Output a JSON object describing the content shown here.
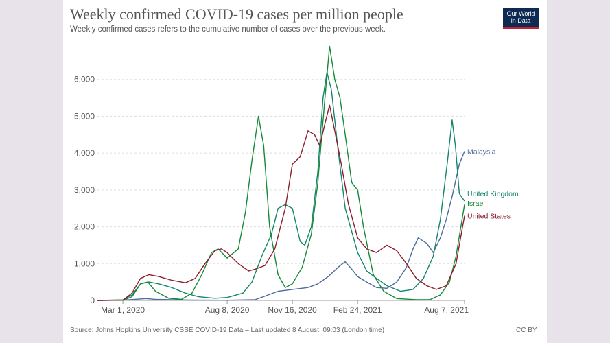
{
  "header": {
    "title": "Weekly confirmed COVID-19 cases per million people",
    "subtitle": "Weekly confirmed cases refers to the cumulative number of cases over the previous week."
  },
  "logo": {
    "line1": "Our World",
    "line2": "in Data"
  },
  "footer": {
    "source": "Source: Johns Hopkins University CSSE COVID-19 Data – Last updated 8 August, 09:03 (London time)",
    "license": "CC BY"
  },
  "chart_data": {
    "type": "line",
    "title": "Weekly confirmed COVID-19 cases per million people",
    "xlabel": "",
    "ylabel": "",
    "x_range": [
      "2020-01-22",
      "2021-08-07"
    ],
    "ylim": [
      0,
      7000
    ],
    "y_ticks": [
      0,
      1000,
      2000,
      3000,
      4000,
      5000,
      6000
    ],
    "x_ticks": [
      {
        "date": "2020-03-01",
        "label": "Mar 1, 2020"
      },
      {
        "date": "2020-08-08",
        "label": "Aug 8, 2020"
      },
      {
        "date": "2020-11-16",
        "label": "Nov 16, 2020"
      },
      {
        "date": "2021-02-24",
        "label": "Feb 24, 2021"
      },
      {
        "date": "2021-08-07",
        "label": "Aug 7, 2021"
      }
    ],
    "grid": "horizontal",
    "series": [
      {
        "name": "Malaysia",
        "color": "#4c6a9c",
        "points": [
          [
            "2020-01-22",
            0
          ],
          [
            "2020-03-01",
            10
          ],
          [
            "2020-03-20",
            30
          ],
          [
            "2020-04-05",
            50
          ],
          [
            "2020-04-20",
            30
          ],
          [
            "2020-05-15",
            20
          ],
          [
            "2020-06-15",
            10
          ],
          [
            "2020-08-08",
            5
          ],
          [
            "2020-09-20",
            20
          ],
          [
            "2020-10-10",
            150
          ],
          [
            "2020-10-25",
            250
          ],
          [
            "2020-11-16",
            300
          ],
          [
            "2020-12-10",
            350
          ],
          [
            "2020-12-25",
            450
          ],
          [
            "2021-01-10",
            650
          ],
          [
            "2021-01-25",
            900
          ],
          [
            "2021-02-05",
            1050
          ],
          [
            "2021-02-15",
            850
          ],
          [
            "2021-02-24",
            650
          ],
          [
            "2021-03-10",
            500
          ],
          [
            "2021-03-25",
            350
          ],
          [
            "2021-04-10",
            330
          ],
          [
            "2021-04-25",
            500
          ],
          [
            "2021-05-10",
            900
          ],
          [
            "2021-05-20",
            1400
          ],
          [
            "2021-05-28",
            1700
          ],
          [
            "2021-06-10",
            1550
          ],
          [
            "2021-06-20",
            1300
          ],
          [
            "2021-07-01",
            1700
          ],
          [
            "2021-07-10",
            2200
          ],
          [
            "2021-07-20",
            2900
          ],
          [
            "2021-07-30",
            3700
          ],
          [
            "2021-08-07",
            4050
          ]
        ]
      },
      {
        "name": "United Kingdom",
        "color": "#13856b",
        "points": [
          [
            "2020-01-22",
            0
          ],
          [
            "2020-03-01",
            15
          ],
          [
            "2020-03-15",
            150
          ],
          [
            "2020-03-28",
            450
          ],
          [
            "2020-04-10",
            500
          ],
          [
            "2020-04-25",
            450
          ],
          [
            "2020-05-15",
            350
          ],
          [
            "2020-06-05",
            200
          ],
          [
            "2020-06-25",
            100
          ],
          [
            "2020-07-20",
            60
          ],
          [
            "2020-08-08",
            80
          ],
          [
            "2020-09-01",
            200
          ],
          [
            "2020-09-15",
            500
          ],
          [
            "2020-09-30",
            1200
          ],
          [
            "2020-10-15",
            1800
          ],
          [
            "2020-10-25",
            2500
          ],
          [
            "2020-11-05",
            2600
          ],
          [
            "2020-11-16",
            2500
          ],
          [
            "2020-11-28",
            1600
          ],
          [
            "2020-12-05",
            1500
          ],
          [
            "2020-12-15",
            2000
          ],
          [
            "2020-12-25",
            3500
          ],
          [
            "2021-01-02",
            5500
          ],
          [
            "2021-01-08",
            6200
          ],
          [
            "2021-01-15",
            5700
          ],
          [
            "2021-01-25",
            4100
          ],
          [
            "2021-02-05",
            2500
          ],
          [
            "2021-02-24",
            1300
          ],
          [
            "2021-03-10",
            800
          ],
          [
            "2021-03-25",
            600
          ],
          [
            "2021-04-10",
            400
          ],
          [
            "2021-05-01",
            250
          ],
          [
            "2021-05-20",
            300
          ],
          [
            "2021-06-05",
            600
          ],
          [
            "2021-06-20",
            1200
          ],
          [
            "2021-07-01",
            2200
          ],
          [
            "2021-07-12",
            3800
          ],
          [
            "2021-07-19",
            4900
          ],
          [
            "2021-07-24",
            4200
          ],
          [
            "2021-07-30",
            2900
          ],
          [
            "2021-08-07",
            2700
          ]
        ]
      },
      {
        "name": "Israel",
        "color": "#138a36",
        "points": [
          [
            "2020-01-22",
            0
          ],
          [
            "2020-03-01",
            5
          ],
          [
            "2020-03-15",
            100
          ],
          [
            "2020-03-28",
            450
          ],
          [
            "2020-04-08",
            500
          ],
          [
            "2020-04-20",
            250
          ],
          [
            "2020-05-10",
            60
          ],
          [
            "2020-05-30",
            30
          ],
          [
            "2020-06-15",
            200
          ],
          [
            "2020-06-30",
            700
          ],
          [
            "2020-07-15",
            1300
          ],
          [
            "2020-07-25",
            1400
          ],
          [
            "2020-08-08",
            1150
          ],
          [
            "2020-08-25",
            1400
          ],
          [
            "2020-09-05",
            2400
          ],
          [
            "2020-09-15",
            3800
          ],
          [
            "2020-09-25",
            5000
          ],
          [
            "2020-10-03",
            4200
          ],
          [
            "2020-10-12",
            2000
          ],
          [
            "2020-10-25",
            700
          ],
          [
            "2020-11-05",
            350
          ],
          [
            "2020-11-16",
            450
          ],
          [
            "2020-12-01",
            900
          ],
          [
            "2020-12-15",
            1800
          ],
          [
            "2020-12-25",
            3200
          ],
          [
            "2021-01-05",
            5500
          ],
          [
            "2021-01-12",
            6900
          ],
          [
            "2021-01-20",
            6000
          ],
          [
            "2021-01-28",
            5500
          ],
          [
            "2021-02-05",
            4500
          ],
          [
            "2021-02-15",
            3200
          ],
          [
            "2021-02-24",
            3000
          ],
          [
            "2021-03-05",
            2000
          ],
          [
            "2021-03-20",
            700
          ],
          [
            "2021-04-05",
            250
          ],
          [
            "2021-04-25",
            50
          ],
          [
            "2021-05-25",
            20
          ],
          [
            "2021-06-15",
            20
          ],
          [
            "2021-07-01",
            150
          ],
          [
            "2021-07-15",
            500
          ],
          [
            "2021-07-25",
            1200
          ],
          [
            "2021-08-07",
            2600
          ]
        ]
      },
      {
        "name": "United States",
        "color": "#8b1c2c",
        "points": [
          [
            "2020-01-22",
            0
          ],
          [
            "2020-03-01",
            10
          ],
          [
            "2020-03-15",
            200
          ],
          [
            "2020-03-28",
            600
          ],
          [
            "2020-04-10",
            700
          ],
          [
            "2020-04-25",
            650
          ],
          [
            "2020-05-15",
            550
          ],
          [
            "2020-06-05",
            480
          ],
          [
            "2020-06-20",
            600
          ],
          [
            "2020-07-05",
            1000
          ],
          [
            "2020-07-20",
            1350
          ],
          [
            "2020-07-30",
            1400
          ],
          [
            "2020-08-08",
            1300
          ],
          [
            "2020-08-25",
            1000
          ],
          [
            "2020-09-10",
            800
          ],
          [
            "2020-09-20",
            850
          ],
          [
            "2020-10-05",
            950
          ],
          [
            "2020-10-20",
            1400
          ],
          [
            "2020-11-05",
            2500
          ],
          [
            "2020-11-16",
            3700
          ],
          [
            "2020-11-28",
            3900
          ],
          [
            "2020-12-10",
            4600
          ],
          [
            "2020-12-20",
            4500
          ],
          [
            "2020-12-28",
            4200
          ],
          [
            "2021-01-05",
            4800
          ],
          [
            "2021-01-12",
            5300
          ],
          [
            "2021-01-20",
            4600
          ],
          [
            "2021-01-30",
            3700
          ],
          [
            "2021-02-10",
            2600
          ],
          [
            "2021-02-24",
            1700
          ],
          [
            "2021-03-10",
            1400
          ],
          [
            "2021-03-25",
            1300
          ],
          [
            "2021-04-10",
            1500
          ],
          [
            "2021-04-25",
            1350
          ],
          [
            "2021-05-10",
            1000
          ],
          [
            "2021-05-25",
            600
          ],
          [
            "2021-06-10",
            400
          ],
          [
            "2021-06-25",
            300
          ],
          [
            "2021-07-10",
            400
          ],
          [
            "2021-07-25",
            1000
          ],
          [
            "2021-08-07",
            2300
          ]
        ]
      }
    ],
    "series_labels": [
      {
        "series": "Malaysia",
        "text": "Malaysia",
        "value": 4050
      },
      {
        "series": "United Kingdom",
        "text": "United Kingdom",
        "value": 2900
      },
      {
        "series": "Israel",
        "text": "Israel",
        "value": 2640
      },
      {
        "series": "United States",
        "text": "United States",
        "value": 2300
      }
    ]
  }
}
